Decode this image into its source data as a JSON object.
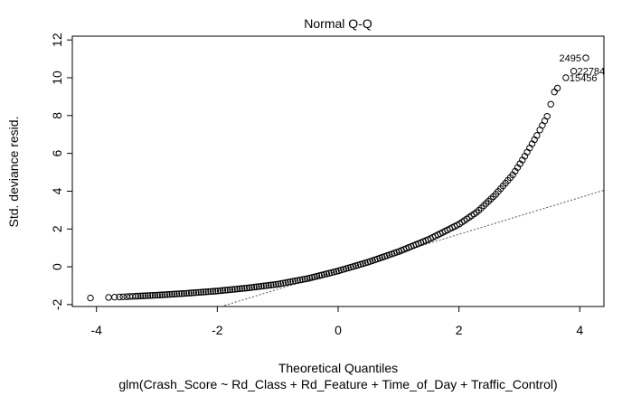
{
  "chart_data": {
    "type": "scatter",
    "title": "Normal Q-Q",
    "xlabel": "Theoretical Quantiles",
    "ylabel": "Std. deviance resid.",
    "subtitle": "glm(Crash_Score ~ Rd_Class + Rd_Feature + Time_of_Day + Traffic_Control)",
    "xlim": [
      -4.4,
      4.4
    ],
    "ylim": [
      -2.1,
      12.2
    ],
    "x_ticks": [
      -4,
      -2,
      0,
      2,
      4
    ],
    "x_tick_labels": [
      "-4",
      "-2",
      "0",
      "2",
      "4"
    ],
    "y_ticks": [
      -2,
      0,
      2,
      4,
      6,
      8,
      10,
      12
    ],
    "y_tick_labels": [
      "-2",
      "0",
      "2",
      "4",
      "6",
      "8",
      "10",
      "12"
    ],
    "grid": false,
    "reference_line": {
      "style": "dotted",
      "slope": 0.97,
      "intercept": -0.22
    },
    "curve_anchors": {
      "x": [
        -4.1,
        -3.8,
        -3.5,
        -3.0,
        -2.5,
        -2.0,
        -1.5,
        -1.0,
        -0.5,
        0.0,
        0.5,
        1.0,
        1.5,
        2.0,
        2.3,
        2.6,
        2.9,
        3.1,
        3.3,
        3.5
      ],
      "y": [
        -1.65,
        -1.62,
        -1.58,
        -1.5,
        -1.4,
        -1.28,
        -1.12,
        -0.92,
        -0.62,
        -0.22,
        0.25,
        0.8,
        1.45,
        2.25,
        2.9,
        3.8,
        4.9,
        5.9,
        7.0,
        8.2
      ]
    },
    "labeled_points": [
      {
        "label": "2495",
        "x": 4.1,
        "y": 11.05
      },
      {
        "label": "22784",
        "x": 3.9,
        "y": 10.35
      },
      {
        "label": "15456",
        "x": 3.77,
        "y": 10.0
      }
    ],
    "upper_tail_points": {
      "x": [
        3.52,
        3.58,
        3.63
      ],
      "y": [
        8.6,
        9.25,
        9.45
      ]
    }
  }
}
